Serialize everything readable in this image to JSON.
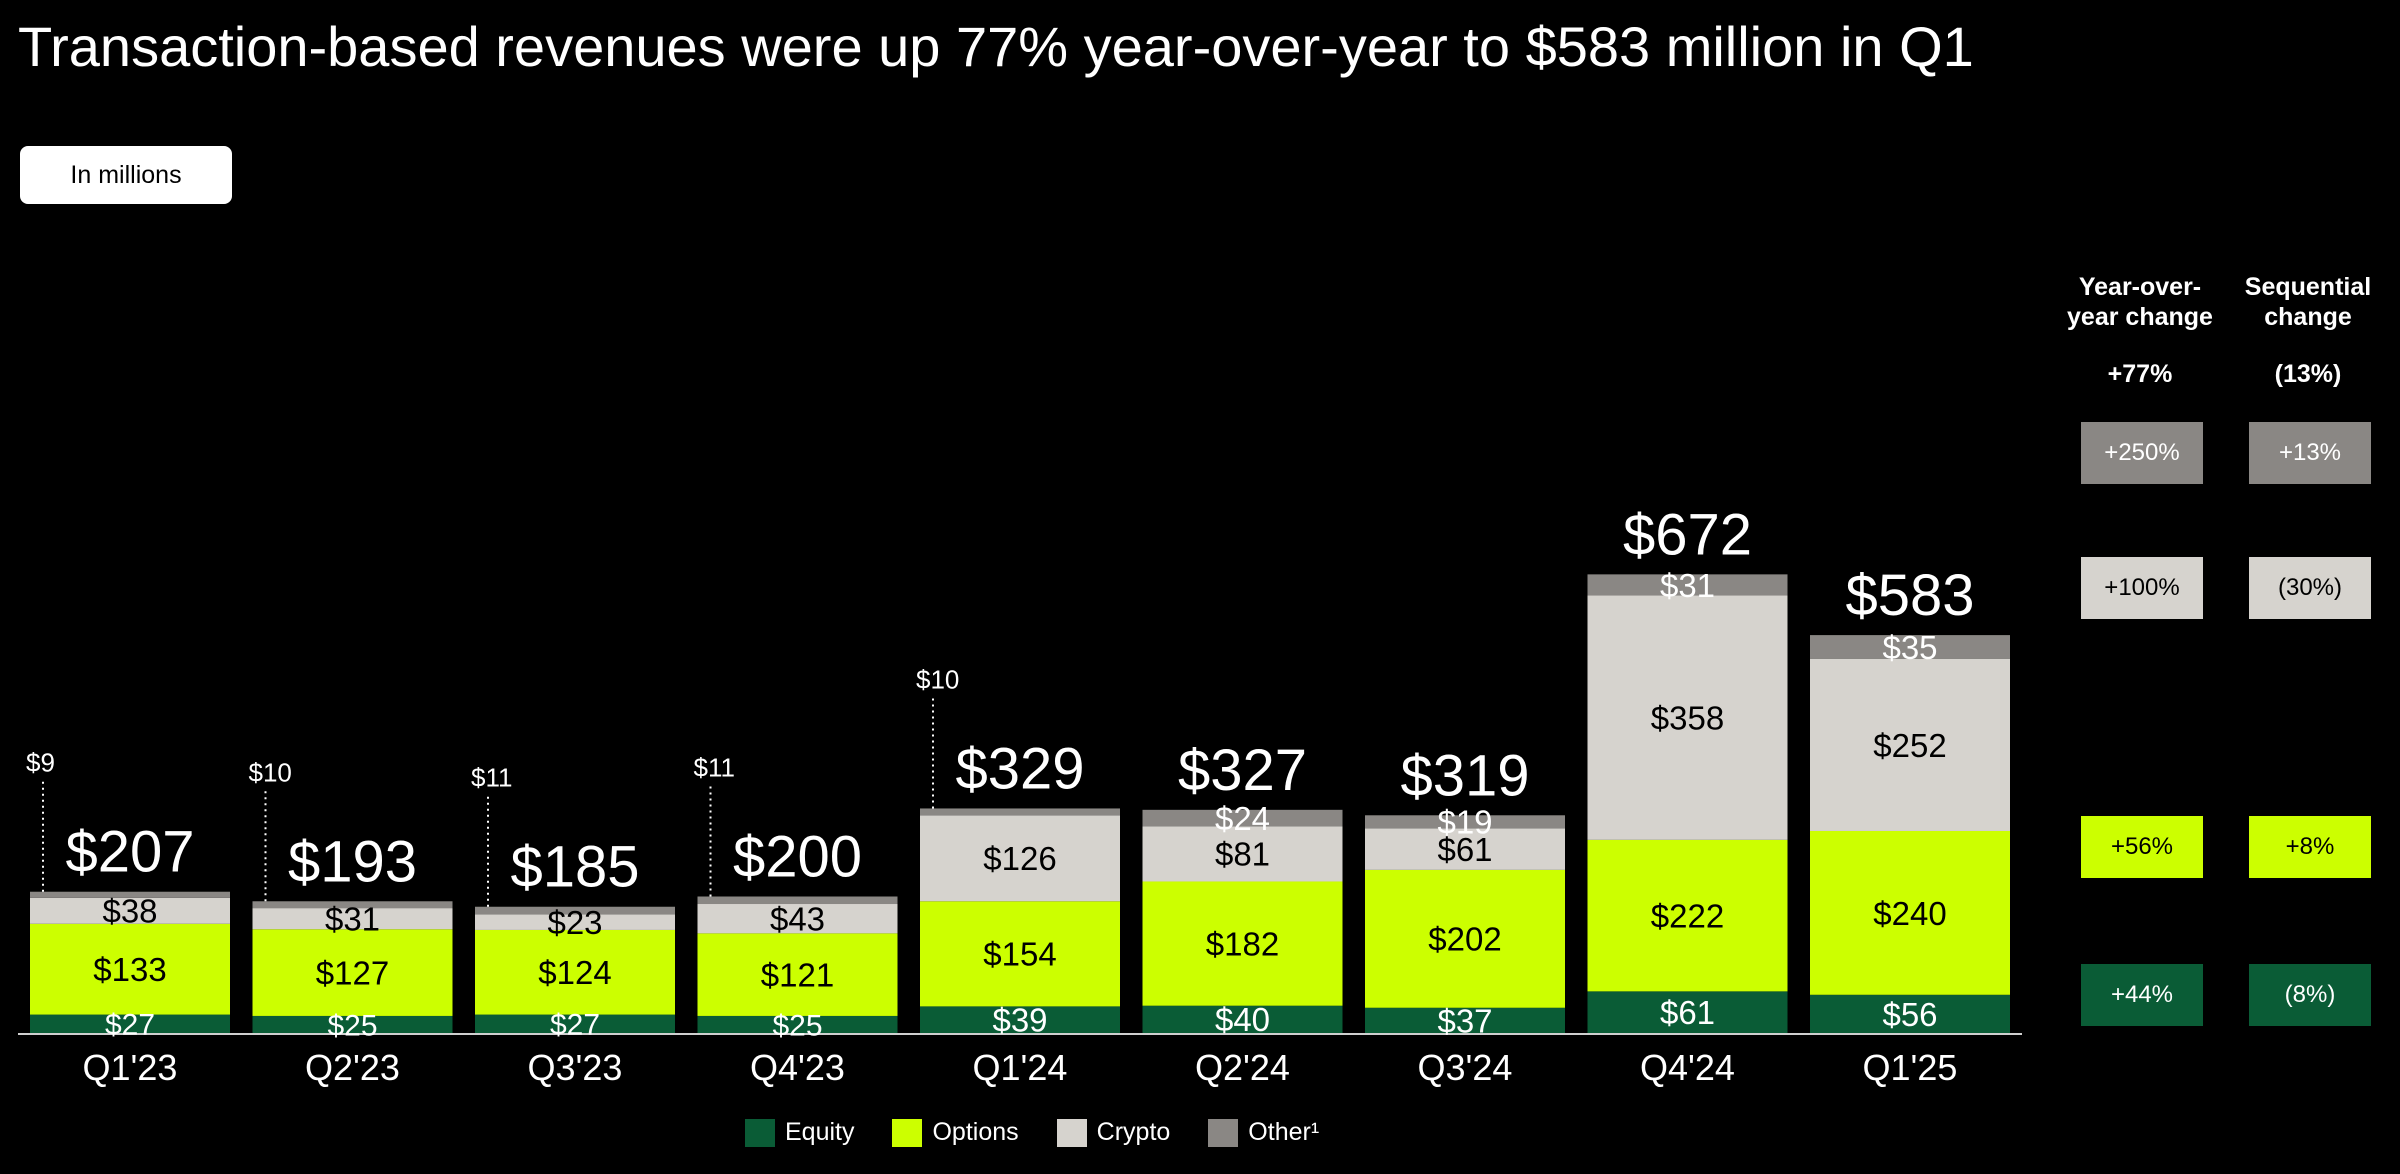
{
  "title": "Transaction-based revenues were up 77% year-over-year to $583 million in Q1",
  "unit_badge": "In millions",
  "colors": {
    "equity": "#0a5c36",
    "options": "#ccff00",
    "crypto": "#d6d3ce",
    "other": "#8a8784"
  },
  "chart_data": {
    "type": "bar",
    "stacked": true,
    "categories": [
      "Q1'23",
      "Q2'23",
      "Q3'23",
      "Q4'23",
      "Q1'24",
      "Q2'24",
      "Q3'24",
      "Q4'24",
      "Q1'25"
    ],
    "series": [
      {
        "name": "Equity",
        "key": "equity",
        "values": [
          27,
          25,
          27,
          25,
          39,
          40,
          37,
          61,
          56
        ],
        "labels": [
          "$27",
          "$25",
          "$27",
          "$25",
          "$39",
          "$40",
          "$37",
          "$61",
          "$56"
        ]
      },
      {
        "name": "Options",
        "key": "options",
        "values": [
          133,
          127,
          124,
          121,
          154,
          182,
          202,
          222,
          240
        ],
        "labels": [
          "$133",
          "$127",
          "$124",
          "$121",
          "$154",
          "$182",
          "$202",
          "$222",
          "$240"
        ]
      },
      {
        "name": "Crypto",
        "key": "crypto",
        "values": [
          38,
          31,
          23,
          43,
          126,
          81,
          61,
          358,
          252
        ],
        "labels": [
          "$38",
          "$31",
          "$23",
          "$43",
          "$126",
          "$81",
          "$61",
          "$358",
          "$252"
        ]
      },
      {
        "name": "Other¹",
        "key": "other",
        "values": [
          9,
          10,
          11,
          11,
          10,
          24,
          19,
          31,
          35
        ],
        "labels": [
          "$9",
          "$10",
          "$11",
          "$11",
          "$10",
          "$24",
          "$19",
          "$31",
          "$35"
        ]
      }
    ],
    "totals": [
      207,
      193,
      185,
      200,
      329,
      327,
      319,
      672,
      583
    ],
    "total_labels": [
      "$207",
      "$193",
      "$185",
      "$200",
      "$329",
      "$327",
      "$319",
      "$672",
      "$583"
    ],
    "legend_placement": "bottom",
    "grid": false
  },
  "changes": {
    "yoy_header_line1": "Year-over-",
    "yoy_header_line2": "year change",
    "seq_header_line1": "Sequential",
    "seq_header_line2": "change",
    "total_yoy": "+77%",
    "total_seq": "(13%)",
    "rows": [
      {
        "key": "other",
        "yoy": "+250%",
        "seq": "+13%"
      },
      {
        "key": "crypto",
        "yoy": "+100%",
        "seq": "(30%)"
      },
      {
        "key": "options",
        "yoy": "+56%",
        "seq": "+8%"
      },
      {
        "key": "equity",
        "yoy": "+44%",
        "seq": "(8%)"
      }
    ]
  }
}
